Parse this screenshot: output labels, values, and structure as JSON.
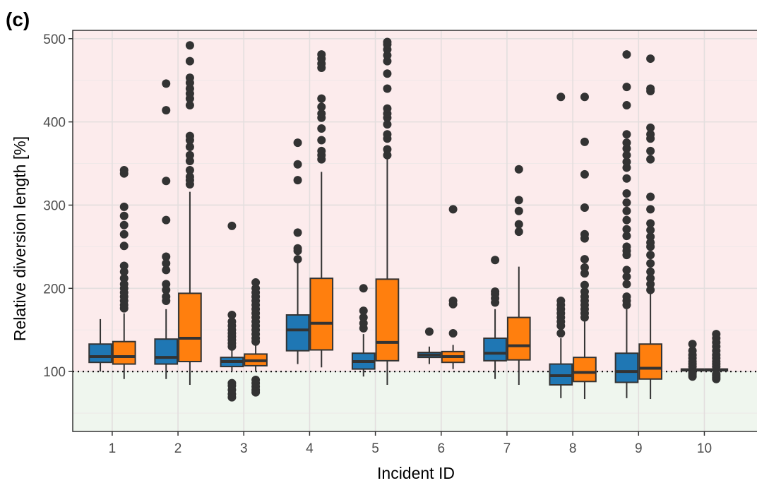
{
  "chart_data": {
    "type": "boxplot",
    "panel_label": "(c)",
    "xlabel": "Incident ID",
    "ylabel": "Relative diversion length [%]",
    "ylim": [
      28,
      510
    ],
    "yticks": [
      100,
      200,
      300,
      400,
      500
    ],
    "reference_line": 100,
    "background_bands": [
      {
        "from": 100,
        "to": 510,
        "color": "#fcebec"
      },
      {
        "from": 28,
        "to": 100,
        "color": "#eff6ee"
      }
    ],
    "grid": true,
    "colors": {
      "series_a": "#1f77b4",
      "series_b": "#ff7f0e",
      "outline": "#333333"
    },
    "categories": [
      "1",
      "2",
      "3",
      "4",
      "5",
      "6",
      "7",
      "8",
      "9",
      "10"
    ],
    "series": [
      {
        "color": "#1f77b4",
        "boxes": [
          {
            "whislo": 100,
            "q1": 111,
            "med": 118,
            "q3": 133,
            "whishi": 163,
            "outliers": []
          },
          {
            "whislo": 91,
            "q1": 109,
            "med": 117,
            "q3": 139,
            "whishi": 175,
            "outliers": [
              185,
              190,
              198,
              205,
              222,
              230,
              238,
              282,
              329,
              414,
              446
            ]
          },
          {
            "whislo": 100,
            "q1": 106,
            "med": 112,
            "q3": 117,
            "whishi": 128,
            "outliers": [
              69,
              73,
              78,
              83,
              86,
              130,
              134,
              138,
              142,
              146,
              150,
              155,
              160,
              168,
              275
            ]
          },
          {
            "whislo": 109,
            "q1": 125,
            "med": 150,
            "q3": 168,
            "whishi": 232,
            "outliers": [
              235,
              245,
              248,
              267,
              330,
              349,
              375
            ]
          },
          {
            "whislo": 94,
            "q1": 103,
            "med": 112,
            "q3": 122,
            "whishi": 145,
            "outliers": [
              152,
              158,
              165,
              173,
              200
            ]
          },
          {
            "whislo": 109,
            "q1": 117,
            "med": 120,
            "q3": 123,
            "whishi": 130,
            "outliers": [
              148
            ]
          },
          {
            "whislo": 91,
            "q1": 113,
            "med": 122,
            "q3": 140,
            "whishi": 175,
            "outliers": [
              183,
              188,
              193,
              196,
              234
            ]
          },
          {
            "whislo": 68,
            "q1": 84,
            "med": 95,
            "q3": 109,
            "whishi": 140,
            "outliers": [
              146,
              155,
              160,
              165,
              170,
              175,
              180,
              185,
              430
            ]
          },
          {
            "whislo": 68,
            "q1": 87,
            "med": 100,
            "q3": 122,
            "whishi": 175,
            "outliers": [
              180,
              185,
              190,
              205,
              214,
              222,
              240,
              245,
              250,
              263,
              271,
              282,
              293,
              303,
              314,
              332,
              345,
              352,
              360,
              368,
              375,
              385,
              420,
              442,
              481
            ]
          }
        ]
      },
      {
        "color": "#ff7f0e",
        "boxes": [
          {
            "whislo": 91,
            "q1": 109,
            "med": 118,
            "q3": 136,
            "whishi": 170,
            "outliers": [
              176,
              180,
              185,
              190,
              195,
              200,
              205,
              212,
              220,
              227,
              251,
              265,
              276,
              287,
              298,
              338,
              342
            ]
          },
          {
            "whislo": 84,
            "q1": 112,
            "med": 140,
            "q3": 194,
            "whishi": 316,
            "outliers": [
              325,
              330,
              334,
              342,
              353,
              360,
              370,
              378,
              383,
              420,
              428,
              434,
              440,
              447,
              453,
              473,
              492
            ]
          },
          {
            "whislo": 100,
            "q1": 107,
            "med": 113,
            "q3": 121,
            "whishi": 133,
            "outliers": [
              75,
              78,
              82,
              86,
              90,
              136,
              140,
              145,
              150,
              155,
              160,
              165,
              170,
              175,
              180,
              185,
              190,
              195,
              200,
              207
            ]
          },
          {
            "whislo": 105,
            "q1": 126,
            "med": 158,
            "q3": 212,
            "whishi": 340,
            "outliers": [
              355,
              360,
              365,
              378,
              392,
              405,
              410,
              418,
              428,
              465,
              470,
              476,
              481
            ]
          },
          {
            "whislo": 84,
            "q1": 113,
            "med": 135,
            "q3": 211,
            "whishi": 356,
            "outliers": [
              360,
              367,
              380,
              385,
              397,
              405,
              410,
              416,
              440,
              458,
              473,
              480,
              487,
              493,
              496
            ]
          },
          {
            "whislo": 103,
            "q1": 111,
            "med": 118,
            "q3": 124,
            "whishi": 132,
            "outliers": [
              146,
              181,
              185,
              295
            ]
          },
          {
            "whislo": 84,
            "q1": 114,
            "med": 131,
            "q3": 165,
            "whishi": 226,
            "outliers": [
              268,
              277,
              293,
              306,
              343
            ]
          },
          {
            "whislo": 67,
            "q1": 88,
            "med": 99,
            "q3": 117,
            "whishi": 160,
            "outliers": [
              165,
              170,
              175,
              180,
              185,
              190,
              196,
              204,
              218,
              225,
              235,
              260,
              265,
              297,
              337,
              376,
              430
            ]
          },
          {
            "whislo": 67,
            "q1": 91,
            "med": 104,
            "q3": 133,
            "whishi": 194,
            "outliers": [
              198,
              205,
              212,
              220,
              230,
              240,
              250,
              255,
              262,
              270,
              278,
              295,
              310,
              355,
              365,
              380,
              385,
              393,
              437,
              440,
              476
            ]
          }
        ]
      }
    ],
    "incident10_extra": {
      "note_values": [
        {
          "series": 0,
          "whislo": 96,
          "q1": 101,
          "med": 102,
          "q3": 103,
          "whishi": 104,
          "outliers": [
            94,
            96,
            98,
            106,
            109,
            112,
            116,
            120,
            125,
            133
          ]
        },
        {
          "series": 1,
          "whislo": 95,
          "q1": 101,
          "med": 102,
          "q3": 103,
          "whishi": 104,
          "outliers": [
            91,
            93,
            95,
            97,
            106,
            109,
            112,
            116,
            120,
            125,
            130,
            135,
            140,
            145
          ]
        }
      ]
    }
  }
}
